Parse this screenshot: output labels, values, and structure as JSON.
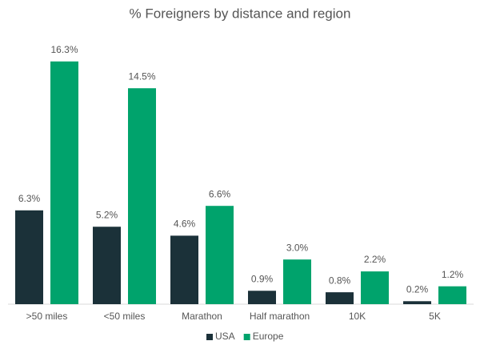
{
  "chart_data": {
    "type": "bar",
    "title": "% Foreigners by distance and region",
    "categories": [
      ">50 miles",
      "<50 miles",
      "Marathon",
      "Half marathon",
      "10K",
      "5K"
    ],
    "series": [
      {
        "name": "USA",
        "color": "#1b3139",
        "values": [
          6.3,
          5.2,
          4.6,
          0.9,
          0.8,
          0.2
        ],
        "value_labels": [
          "6.3%",
          "5.2%",
          "4.6%",
          "0.9%",
          "0.8%",
          "0.2%"
        ]
      },
      {
        "name": "Europe",
        "color": "#00a36c",
        "values": [
          16.3,
          14.5,
          6.6,
          3.0,
          2.2,
          1.2
        ],
        "value_labels": [
          "16.3%",
          "14.5%",
          "6.6%",
          "3.0%",
          "2.2%",
          "1.2%"
        ]
      }
    ],
    "ylim": [
      0,
      17.2
    ],
    "legend": "bottom"
  }
}
